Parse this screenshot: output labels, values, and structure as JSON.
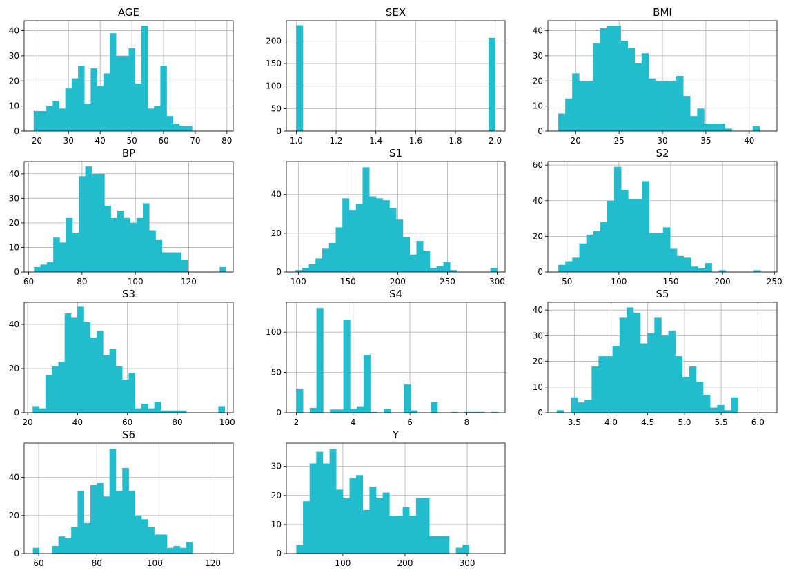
{
  "color": "#22bccd",
  "chart_data": [
    {
      "type": "bar",
      "title": "AGE",
      "xlim": [
        16,
        82
      ],
      "ylim": [
        0,
        44
      ],
      "xticks": [
        20,
        30,
        40,
        50,
        60,
        70,
        80
      ],
      "xtick_labels": [
        "20",
        "30",
        "40",
        "50",
        "60",
        "70",
        "80"
      ],
      "yticks": [
        0,
        10,
        20,
        30,
        40
      ],
      "ytick_labels": [
        "0",
        "10",
        "20",
        "30",
        "40"
      ],
      "grid": true,
      "bin_edges": [
        19,
        21,
        23,
        25,
        27,
        29,
        31,
        33,
        35,
        37,
        39,
        41,
        43,
        45,
        47,
        49,
        51,
        53,
        55,
        57,
        59,
        61,
        63,
        65,
        67,
        69,
        71,
        73,
        75,
        77,
        79
      ],
      "values": [
        8,
        8,
        10,
        12,
        9,
        17,
        21,
        26,
        11,
        25,
        18,
        23,
        39,
        30,
        30,
        33,
        19,
        42,
        9,
        10,
        26,
        6,
        3,
        2,
        2,
        0,
        0,
        0,
        0,
        0
      ]
    },
    {
      "type": "bar",
      "title": "SEX",
      "xlim": [
        0.95,
        2.05
      ],
      "ylim": [
        0,
        245
      ],
      "xticks": [
        1.0,
        1.2,
        1.4,
        1.6,
        1.8,
        2.0
      ],
      "xtick_labels": [
        "1.0",
        "1.2",
        "1.4",
        "1.6",
        "1.8",
        "2.0"
      ],
      "yticks": [
        0,
        50,
        100,
        150,
        200
      ],
      "ytick_labels": [
        "0",
        "50",
        "100",
        "150",
        "200"
      ],
      "grid": true,
      "bin_edges": [
        1.0,
        1.0333,
        1.0667,
        1.1,
        1.1333,
        1.1667,
        1.2,
        1.2333,
        1.2667,
        1.3,
        1.3333,
        1.3667,
        1.4,
        1.4333,
        1.4667,
        1.5,
        1.5333,
        1.5667,
        1.6,
        1.6333,
        1.6667,
        1.7,
        1.7333,
        1.7667,
        1.8,
        1.8333,
        1.8667,
        1.9,
        1.9333,
        1.9667,
        2.0
      ],
      "values": [
        235,
        0,
        0,
        0,
        0,
        0,
        0,
        0,
        0,
        0,
        0,
        0,
        0,
        0,
        0,
        0,
        0,
        0,
        0,
        0,
        0,
        0,
        0,
        0,
        0,
        0,
        0,
        0,
        0,
        207
      ]
    },
    {
      "type": "bar",
      "title": "BMI",
      "xlim": [
        16.8,
        43.2
      ],
      "ylim": [
        0,
        44
      ],
      "xticks": [
        20,
        25,
        30,
        35,
        40
      ],
      "xtick_labels": [
        "20",
        "25",
        "30",
        "35",
        "40"
      ],
      "yticks": [
        0,
        10,
        20,
        30,
        40
      ],
      "ytick_labels": [
        "0",
        "10",
        "20",
        "30",
        "40"
      ],
      "grid": true,
      "bin_edges": [
        18,
        18.8,
        19.6,
        20.4,
        21.2,
        22,
        22.8,
        23.6,
        24.4,
        25.2,
        26,
        26.8,
        27.6,
        28.4,
        29.2,
        30,
        30.8,
        31.6,
        32.4,
        33.2,
        34,
        34.8,
        35.6,
        36.4,
        37.2,
        38,
        38.8,
        39.6,
        40.4,
        41.2,
        42
      ],
      "values": [
        7,
        13,
        23,
        20,
        20,
        35,
        41,
        42,
        42,
        36,
        33,
        27,
        31,
        21,
        20,
        20,
        20,
        22,
        14,
        6,
        9,
        3,
        3,
        3,
        1,
        0,
        0,
        0,
        2,
        0
      ]
    },
    {
      "type": "bar",
      "title": "BP",
      "xlim": [
        58.3,
        136.7
      ],
      "ylim": [
        0,
        45
      ],
      "xticks": [
        60,
        80,
        100,
        120
      ],
      "xtick_labels": [
        "60",
        "80",
        "100",
        "120"
      ],
      "yticks": [
        0,
        10,
        20,
        30,
        40
      ],
      "ytick_labels": [
        "0",
        "10",
        "20",
        "30",
        "40"
      ],
      "grid": true,
      "bin_edges": [
        62,
        64.4,
        66.8,
        69.2,
        71.6,
        74,
        76.4,
        78.8,
        81.2,
        83.6,
        86,
        88.4,
        90.8,
        93.2,
        95.6,
        98,
        100.4,
        102.8,
        105.2,
        107.6,
        110,
        112.4,
        114.8,
        117.2,
        119.6,
        122,
        124.4,
        126.8,
        129.2,
        131.6,
        134
      ],
      "values": [
        2,
        3,
        4,
        14,
        12,
        22,
        16,
        39,
        43,
        40,
        40,
        27,
        22,
        25,
        22,
        20,
        22,
        28,
        17,
        13,
        8,
        8,
        8,
        5,
        0,
        0,
        0,
        0,
        0,
        2
      ]
    },
    {
      "type": "bar",
      "title": "S1",
      "xlim": [
        88,
        308
      ],
      "ylim": [
        0,
        57
      ],
      "xticks": [
        100,
        150,
        200,
        250,
        300
      ],
      "xtick_labels": [
        "100",
        "150",
        "200",
        "250",
        "300"
      ],
      "yticks": [
        0,
        20,
        40
      ],
      "ytick_labels": [
        "0",
        "20",
        "40"
      ],
      "grid": true,
      "bin_edges": [
        97,
        103.77,
        110.53,
        117.3,
        124.07,
        130.83,
        137.6,
        144.37,
        151.13,
        157.9,
        164.67,
        171.43,
        178.2,
        184.97,
        191.73,
        198.5,
        205.27,
        212.03,
        218.8,
        225.57,
        232.33,
        239.1,
        245.87,
        252.63,
        259.4,
        266.17,
        272.93,
        279.7,
        286.47,
        293.23,
        300
      ],
      "values": [
        1,
        2,
        4,
        7,
        12,
        15,
        23,
        38,
        32,
        35,
        54,
        39,
        38,
        37,
        33,
        27,
        18,
        9,
        16,
        11,
        2,
        3,
        5,
        1,
        0,
        0,
        0,
        0,
        0,
        2
      ]
    },
    {
      "type": "bar",
      "title": "S2",
      "xlim": [
        31.5,
        252.5
      ],
      "ylim": [
        0,
        62
      ],
      "xticks": [
        50,
        100,
        150,
        200,
        250
      ],
      "xtick_labels": [
        "50",
        "100",
        "150",
        "200",
        "250"
      ],
      "yticks": [
        0,
        20,
        40,
        60
      ],
      "ytick_labels": [
        "0",
        "20",
        "40",
        "60"
      ],
      "grid": true,
      "bin_edges": [
        41.6,
        48.33,
        55.06,
        61.79,
        68.52,
        75.25,
        81.98,
        88.71,
        95.44,
        102.17,
        108.9,
        115.63,
        122.36,
        129.09,
        135.82,
        142.55,
        149.28,
        156.01,
        162.74,
        169.47,
        176.2,
        182.93,
        189.66,
        196.39,
        203.12,
        209.85,
        216.58,
        223.31,
        230.04,
        236.77,
        243.5
      ],
      "values": [
        4,
        6,
        8,
        16,
        21,
        23,
        28,
        40,
        59,
        46,
        41,
        41,
        51,
        22,
        22,
        25,
        13,
        9,
        8,
        3,
        2,
        5,
        0,
        1,
        0,
        0,
        0,
        0,
        1,
        0
      ]
    },
    {
      "type": "bar",
      "title": "S3",
      "xlim": [
        18.6,
        102.4
      ],
      "ylim": [
        0,
        50
      ],
      "xticks": [
        20,
        40,
        60,
        80,
        100
      ],
      "xtick_labels": [
        "20",
        "40",
        "60",
        "80",
        "100"
      ],
      "yticks": [
        0,
        20,
        40
      ],
      "ytick_labels": [
        "0",
        "20",
        "40"
      ],
      "grid": true,
      "bin_edges": [
        22,
        24.57,
        27.13,
        29.7,
        32.27,
        34.83,
        37.4,
        39.97,
        42.53,
        45.1,
        47.67,
        50.23,
        52.8,
        55.37,
        57.93,
        60.5,
        63.07,
        65.63,
        68.2,
        70.77,
        73.33,
        75.9,
        78.47,
        81.03,
        83.6,
        86.17,
        88.73,
        91.3,
        93.87,
        96.43,
        99
      ],
      "values": [
        3,
        2,
        17,
        21,
        23,
        45,
        43,
        48,
        41,
        34,
        37,
        26,
        29,
        21,
        15,
        18,
        2,
        4,
        2,
        5,
        1,
        1,
        1,
        1,
        0,
        0,
        0,
        0,
        0,
        3
      ]
    },
    {
      "type": "bar",
      "title": "S4",
      "xlim": [
        1.65,
        9.35
      ],
      "ylim": [
        0,
        137
      ],
      "xticks": [
        2,
        4,
        6,
        8
      ],
      "xtick_labels": [
        "2",
        "4",
        "6",
        "8"
      ],
      "yticks": [
        0,
        50,
        100
      ],
      "ytick_labels": [
        "0",
        "50",
        "100"
      ],
      "grid": true,
      "bin_edges": [
        2,
        2.2367,
        2.4733,
        2.71,
        2.9467,
        3.1833,
        3.42,
        3.6567,
        3.8933,
        4.13,
        4.3667,
        4.6033,
        4.84,
        5.0767,
        5.3133,
        5.55,
        5.7867,
        6.0233,
        6.26,
        6.4967,
        6.7333,
        6.97,
        7.2067,
        7.4433,
        7.68,
        7.9167,
        8.1533,
        8.39,
        8.6267,
        8.8633,
        9.1
      ],
      "values": [
        30,
        0,
        6,
        130,
        0,
        4,
        4,
        115,
        5,
        8,
        72,
        1,
        0,
        5,
        0,
        0,
        35,
        3,
        0,
        0,
        13,
        0,
        0,
        1,
        0,
        1,
        1,
        1,
        0,
        1
      ]
    },
    {
      "type": "bar",
      "title": "S5",
      "xlim": [
        3.14,
        6.26
      ],
      "ylim": [
        0,
        43
      ],
      "xticks": [
        3.5,
        4.0,
        4.5,
        5.0,
        5.5,
        6.0
      ],
      "xtick_labels": [
        "3.5",
        "4.0",
        "4.5",
        "5.0",
        "5.5",
        "6.0"
      ],
      "yticks": [
        0,
        10,
        20,
        30,
        40
      ],
      "ytick_labels": [
        "0",
        "10",
        "20",
        "30",
        "40"
      ],
      "grid": true,
      "bin_edges": [
        3.26,
        3.355,
        3.45,
        3.545,
        3.64,
        3.735,
        3.83,
        3.925,
        4.02,
        4.115,
        4.21,
        4.305,
        4.4,
        4.495,
        4.59,
        4.685,
        4.78,
        4.875,
        4.97,
        5.065,
        5.16,
        5.255,
        5.35,
        5.445,
        5.54,
        5.635,
        5.73,
        5.825,
        5.92,
        6.015,
        6.11
      ],
      "values": [
        1,
        0,
        6,
        4,
        5,
        18,
        22,
        22,
        26,
        37,
        41,
        39,
        27,
        31,
        37,
        30,
        32,
        22,
        14,
        18,
        12,
        7,
        2,
        3,
        1,
        6,
        0,
        0,
        0,
        0
      ]
    },
    {
      "type": "bar",
      "title": "S6",
      "xlim": [
        55,
        127
      ],
      "ylim": [
        0,
        58
      ],
      "xticks": [
        60,
        80,
        100,
        120
      ],
      "xtick_labels": [
        "60",
        "80",
        "100",
        "120"
      ],
      "yticks": [
        0,
        20,
        40
      ],
      "ytick_labels": [
        "0",
        "20",
        "40"
      ],
      "grid": true,
      "bin_edges": [
        58,
        60.2,
        62.4,
        64.6,
        66.8,
        69,
        71.2,
        73.4,
        75.6,
        77.8,
        80,
        82.2,
        84.4,
        86.6,
        88.8,
        91,
        93.2,
        95.4,
        97.6,
        99.8,
        102,
        104.2,
        106.4,
        108.6,
        110.8,
        113,
        115.2,
        117.4,
        119.6,
        121.8,
        124
      ],
      "values": [
        3,
        0,
        0,
        4,
        9,
        8,
        14,
        33,
        16,
        36,
        37,
        30,
        55,
        33,
        45,
        33,
        20,
        18,
        14,
        10,
        10,
        3,
        4,
        3,
        6,
        0,
        0,
        0,
        0,
        0
      ]
    },
    {
      "type": "bar",
      "title": "Y",
      "xlim": [
        9,
        361
      ],
      "ylim": [
        0,
        38
      ],
      "xticks": [
        100,
        200,
        300
      ],
      "xtick_labels": [
        "100",
        "200",
        "300"
      ],
      "yticks": [
        0,
        10,
        20,
        30
      ],
      "ytick_labels": [
        "0",
        "10",
        "20",
        "30"
      ],
      "grid": true,
      "bin_edges": [
        25,
        35.7,
        46.4,
        57.1,
        67.8,
        78.5,
        89.2,
        99.9,
        110.6,
        121.3,
        132,
        142.7,
        153.4,
        164.1,
        174.8,
        185.5,
        196.2,
        206.9,
        217.6,
        228.3,
        239,
        249.7,
        260.4,
        271.1,
        281.8,
        292.5,
        303.2,
        313.9,
        324.6,
        335.3,
        346
      ],
      "values": [
        3,
        18,
        31,
        35,
        31,
        36,
        22,
        19,
        26,
        27,
        15,
        23,
        19,
        21,
        13,
        13,
        16,
        13,
        19,
        19,
        6,
        6,
        6,
        0,
        2,
        3,
        0,
        0,
        0,
        0
      ]
    }
  ]
}
